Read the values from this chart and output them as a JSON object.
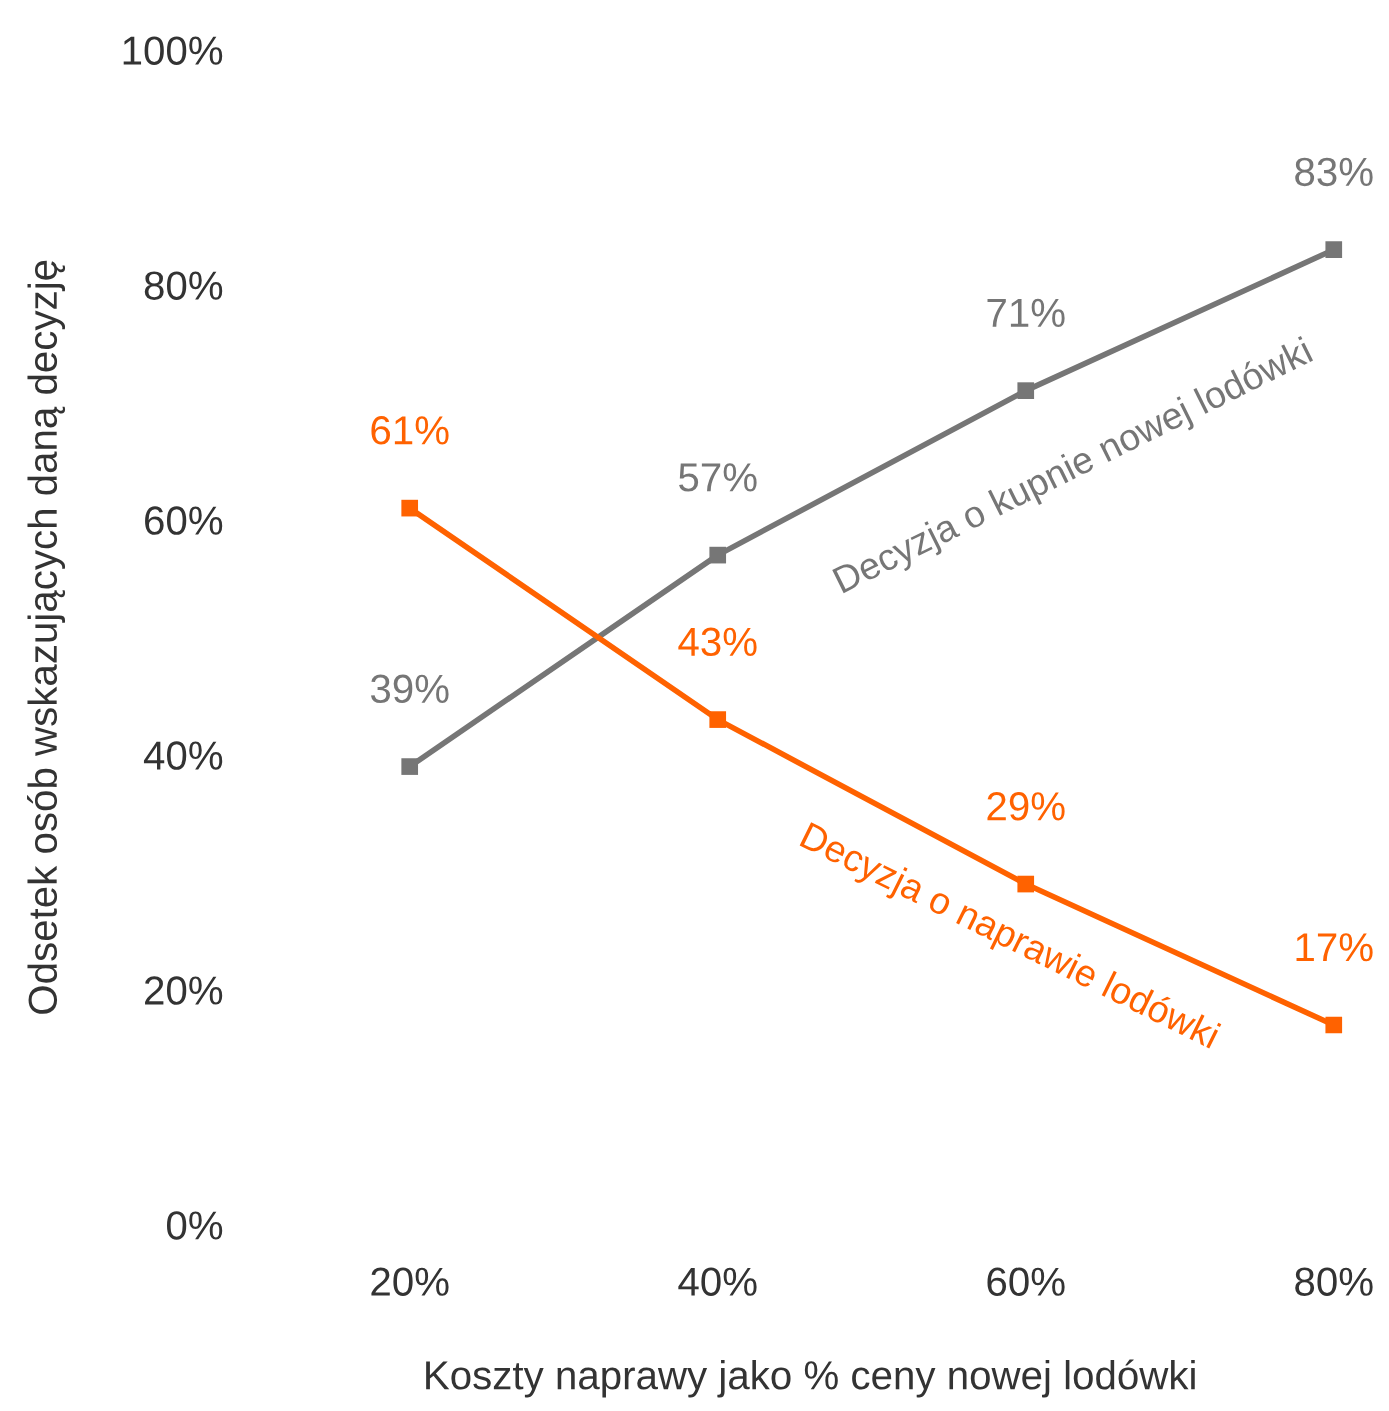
{
  "chart_data": {
    "type": "line",
    "xlabel": "Koszty naprawy jako % ceny nowej lodówki",
    "ylabel": "Odsetek osób wskazujących daną decyzję",
    "categories": [
      "20%",
      "40%",
      "60%",
      "80%"
    ],
    "series": [
      {
        "name": "Decyzja o kupnie nowej lodówki",
        "color": "#767676",
        "values": [
          39,
          57,
          71,
          83
        ],
        "value_labels": [
          "39%",
          "57%",
          "71%",
          "83%"
        ]
      },
      {
        "name": "Decyzja o naprawie lodówki",
        "color": "#ff6200",
        "values": [
          61,
          43,
          29,
          17
        ],
        "value_labels": [
          "61%",
          "43%",
          "29%",
          "17%"
        ]
      }
    ],
    "ylim": [
      0,
      100
    ],
    "yticks": [
      {
        "value": 0,
        "label": "0%"
      },
      {
        "value": 20,
        "label": "20%"
      },
      {
        "value": 40,
        "label": "40%"
      },
      {
        "value": 60,
        "label": "60%"
      },
      {
        "value": 80,
        "label": "80%"
      },
      {
        "value": 100,
        "label": "100%"
      }
    ],
    "marker": "square",
    "line_style": "solid",
    "grid": false,
    "legend": false
  }
}
